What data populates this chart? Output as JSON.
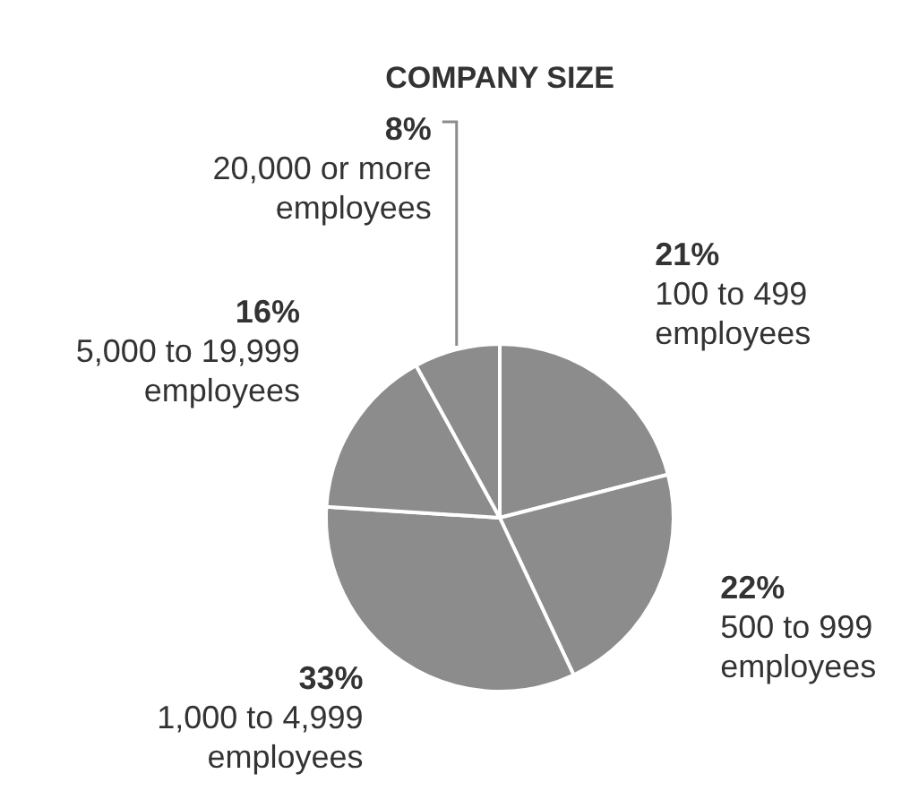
{
  "chart_data": {
    "type": "pie",
    "title": "COMPANY SIZE",
    "categories": [
      "100 to 499 employees",
      "500 to 999 employees",
      "1,000 to 4,999 employees",
      "5,000 to 19,999 employees",
      "20,000 or more employees"
    ],
    "values": [
      21,
      22,
      33,
      16,
      8
    ],
    "value_labels": [
      "21%",
      "22%",
      "33%",
      "16%",
      "8%"
    ],
    "colors": [
      "#8c8c8c",
      "#8c8c8c",
      "#8c8c8c",
      "#8c8c8c",
      "#8c8c8c"
    ]
  }
}
